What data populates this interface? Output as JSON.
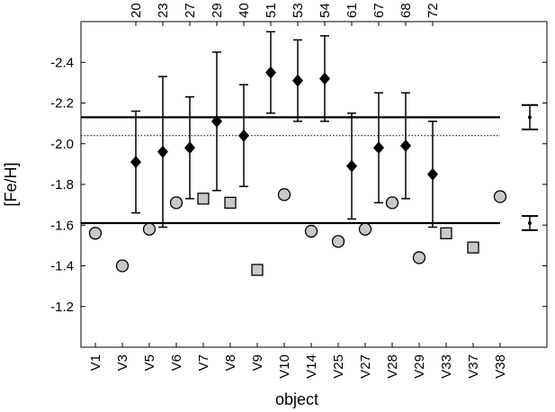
{
  "chart_data": {
    "type": "scatter",
    "x_label": "object",
    "y_label": "[Fe/H]",
    "categories": [
      "V1",
      "V3",
      "V5",
      "V6",
      "V7",
      "V8",
      "V9",
      "V10",
      "V14",
      "V25",
      "V27",
      "V28",
      "V29",
      "V33",
      "V37",
      "V38"
    ],
    "top_categories": [
      20,
      23,
      27,
      29,
      40,
      51,
      53,
      54,
      61,
      67,
      68,
      72
    ],
    "ylim": [
      -1.0,
      -2.6
    ],
    "yticks": [
      -2.4,
      -2.2,
      {
        "value": -2,
        "label": "-2.0"
      },
      -1.8,
      -1.6,
      -1.4,
      -1.2
    ],
    "series": [
      {
        "marker": "circle",
        "color": "#c8c8c8",
        "values": [
          -1.56,
          -1.4,
          -1.58,
          -1.71,
          null,
          null,
          null,
          -1.75,
          -1.57,
          -1.52,
          -1.58,
          -1.71,
          -1.44,
          null,
          null,
          -1.74
        ]
      },
      {
        "marker": "square",
        "color": "#c8c8c8",
        "values": [
          null,
          null,
          null,
          null,
          -1.73,
          -1.71,
          -1.38,
          null,
          null,
          null,
          null,
          null,
          null,
          -1.56,
          -1.49,
          null
        ]
      },
      {
        "marker": "diamond",
        "color": "#000000",
        "values": [
          -1.91,
          -1.96,
          -1.98,
          -2.11,
          -2.04,
          -2.35,
          -2.31,
          -2.32,
          -1.89,
          -1.98,
          -1.99,
          -1.85
        ],
        "errors": [
          0.25,
          0.37,
          0.25,
          0.34,
          0.25,
          0.2,
          0.2,
          0.21,
          0.26,
          0.27,
          0.26,
          0.26
        ]
      }
    ],
    "reference_lines": [
      {
        "value": -2.13,
        "style": "solid"
      },
      {
        "value": -2.04,
        "style": "dotted"
      },
      {
        "value": -1.61,
        "style": "solid"
      }
    ],
    "mean_errors": [
      {
        "value": -2.13,
        "error": 0.06
      },
      {
        "value": -1.61,
        "error": 0.035
      }
    ]
  }
}
